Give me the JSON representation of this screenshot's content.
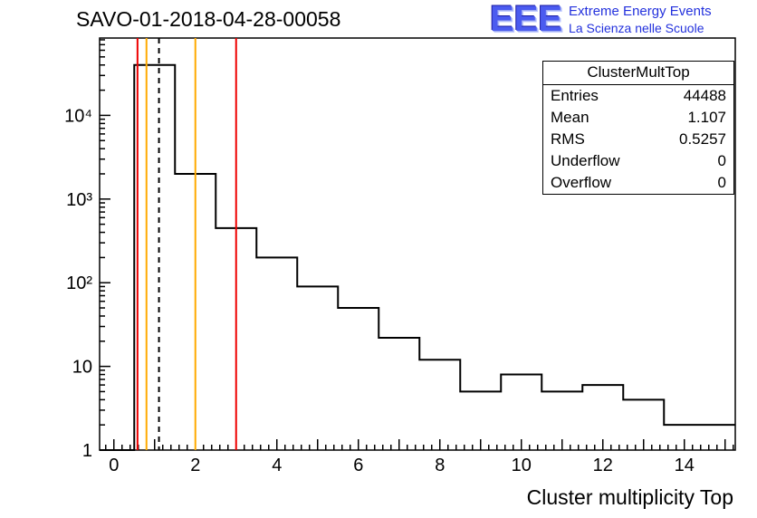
{
  "page": {
    "title": "SAVO-01-2018-04-28-00058"
  },
  "logo": {
    "text": "EEE",
    "line1": "Extreme Energy Events",
    "line2": "La Scienza nelle Scuole",
    "color": "#2331dd"
  },
  "stats": {
    "title": "ClusterMultTop",
    "rows": [
      {
        "label": "Entries",
        "value": "44488"
      },
      {
        "label": "Mean",
        "value": "1.107"
      },
      {
        "label": "RMS",
        "value": "0.5257"
      },
      {
        "label": "Underflow",
        "value": "0"
      },
      {
        "label": "Overflow",
        "value": "0"
      }
    ]
  },
  "chart_data": {
    "type": "bar",
    "subtype": "step-histogram",
    "title": "SAVO-01-2018-04-28-00058",
    "xlabel": "Cluster multiplicity Top",
    "ylabel": "",
    "y_scale": "log",
    "x_range": [
      -0.35,
      15.25
    ],
    "y_range": [
      1,
      84000
    ],
    "grid": false,
    "legend": false,
    "bin_edges": [
      0.5,
      1.5,
      2.5,
      3.5,
      4.5,
      5.5,
      6.5,
      7.5,
      8.5,
      9.5,
      10.5,
      11.5,
      12.5,
      13.5,
      15.3
    ],
    "bin_values": [
      40000,
      2000,
      450,
      200,
      90,
      50,
      22,
      12,
      5,
      8,
      5,
      6,
      4,
      2
    ],
    "x_labeled_ticks": [
      0,
      2,
      4,
      6,
      8,
      10,
      12,
      14
    ],
    "y_tick_labels": [
      {
        "value": 1,
        "label": "1"
      },
      {
        "value": 10,
        "label": "10"
      },
      {
        "value": 100,
        "label": "10²"
      },
      {
        "value": 1000,
        "label": "10³"
      },
      {
        "value": 10000,
        "label": "10⁴"
      }
    ],
    "line_color": "#000000",
    "marker_lines": [
      {
        "x": 0.58,
        "color": "#ee0000",
        "style": "solid"
      },
      {
        "x": 0.8,
        "color": "#ffaa00",
        "style": "solid"
      },
      {
        "x": 1.107,
        "color": "#000000",
        "style": "dashed"
      },
      {
        "x": 2.0,
        "color": "#ffaa00",
        "style": "solid"
      },
      {
        "x": 3.0,
        "color": "#ee0000",
        "style": "solid"
      }
    ]
  }
}
